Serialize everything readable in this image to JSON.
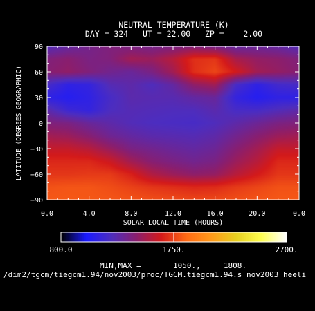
{
  "chart_data": {
    "type": "heatmap",
    "title": "NEUTRAL TEMPERATURE (K)",
    "subtitle": "DAY = 324   UT = 22.00   ZP =    2.00",
    "xlabel": "SOLAR LOCAL TIME (HOURS)",
    "ylabel": "LATITUDE (DEGREES GEOGRAPHIC)",
    "xlim": [
      0,
      24
    ],
    "ylim": [
      -90,
      90
    ],
    "x_ticks": [
      "0.0",
      "4.0",
      "8.0",
      "12.0",
      "16.0",
      "20.0",
      "0.0"
    ],
    "y_ticks": [
      "90",
      "60",
      "30",
      "0",
      "-30",
      "-60",
      "-90"
    ],
    "x": [
      0,
      2,
      4,
      6,
      8,
      10,
      12,
      14,
      16,
      18,
      20,
      22,
      24
    ],
    "y": [
      90,
      75,
      60,
      45,
      30,
      15,
      0,
      -15,
      -30,
      -45,
      -60,
      -75,
      -90
    ],
    "z_units": "K",
    "z": [
      [
        1240,
        1300,
        1360,
        1400,
        1380,
        1360,
        1380,
        1400,
        1360,
        1300,
        1320,
        1300,
        1240
      ],
      [
        1400,
        1430,
        1380,
        1400,
        1500,
        1480,
        1560,
        1700,
        1720,
        1520,
        1460,
        1440,
        1400
      ],
      [
        1420,
        1450,
        1400,
        1350,
        1320,
        1380,
        1500,
        1700,
        1760,
        1640,
        1500,
        1460,
        1420
      ],
      [
        1200,
        1100,
        1120,
        1250,
        1280,
        1230,
        1300,
        1450,
        1500,
        1200,
        1100,
        1180,
        1200
      ],
      [
        1100,
        1060,
        1100,
        1200,
        1270,
        1260,
        1260,
        1300,
        1320,
        1120,
        1060,
        1100,
        1100
      ],
      [
        1280,
        1160,
        1120,
        1220,
        1250,
        1240,
        1230,
        1230,
        1270,
        1200,
        1200,
        1240,
        1280
      ],
      [
        1400,
        1380,
        1320,
        1280,
        1240,
        1220,
        1210,
        1200,
        1230,
        1280,
        1330,
        1380,
        1400
      ],
      [
        1500,
        1480,
        1420,
        1340,
        1300,
        1270,
        1260,
        1250,
        1280,
        1350,
        1420,
        1480,
        1500
      ],
      [
        1600,
        1600,
        1560,
        1470,
        1380,
        1350,
        1320,
        1300,
        1330,
        1420,
        1500,
        1600,
        1600
      ],
      [
        1680,
        1680,
        1680,
        1620,
        1500,
        1420,
        1380,
        1350,
        1380,
        1480,
        1560,
        1680,
        1680
      ],
      [
        1720,
        1720,
        1730,
        1730,
        1660,
        1540,
        1480,
        1440,
        1460,
        1560,
        1640,
        1720,
        1720
      ],
      [
        1790,
        1800,
        1800,
        1780,
        1750,
        1720,
        1700,
        1680,
        1690,
        1730,
        1760,
        1790,
        1790
      ],
      [
        1808,
        1808,
        1805,
        1800,
        1790,
        1780,
        1770,
        1760,
        1765,
        1780,
        1795,
        1805,
        1808
      ]
    ],
    "colorbar": {
      "min": 800,
      "max": 2700,
      "labels": [
        "800.0",
        "1750.",
        "2700."
      ]
    },
    "colormap": [
      "#000000",
      "#1a1aff",
      "#4d2dbf",
      "#8a1e6e",
      "#d41a1a",
      "#ff6a14",
      "#ff9a1a",
      "#e8d020",
      "#ffff50",
      "#ffffff"
    ],
    "minmax_text": "MIN,MAX =       1050.,     1808.",
    "source_path": "/dim2/tgcm/tiegcm1.94/nov2003/proc/TGCM.tiegcm1.94.s_nov2003_heeli"
  }
}
